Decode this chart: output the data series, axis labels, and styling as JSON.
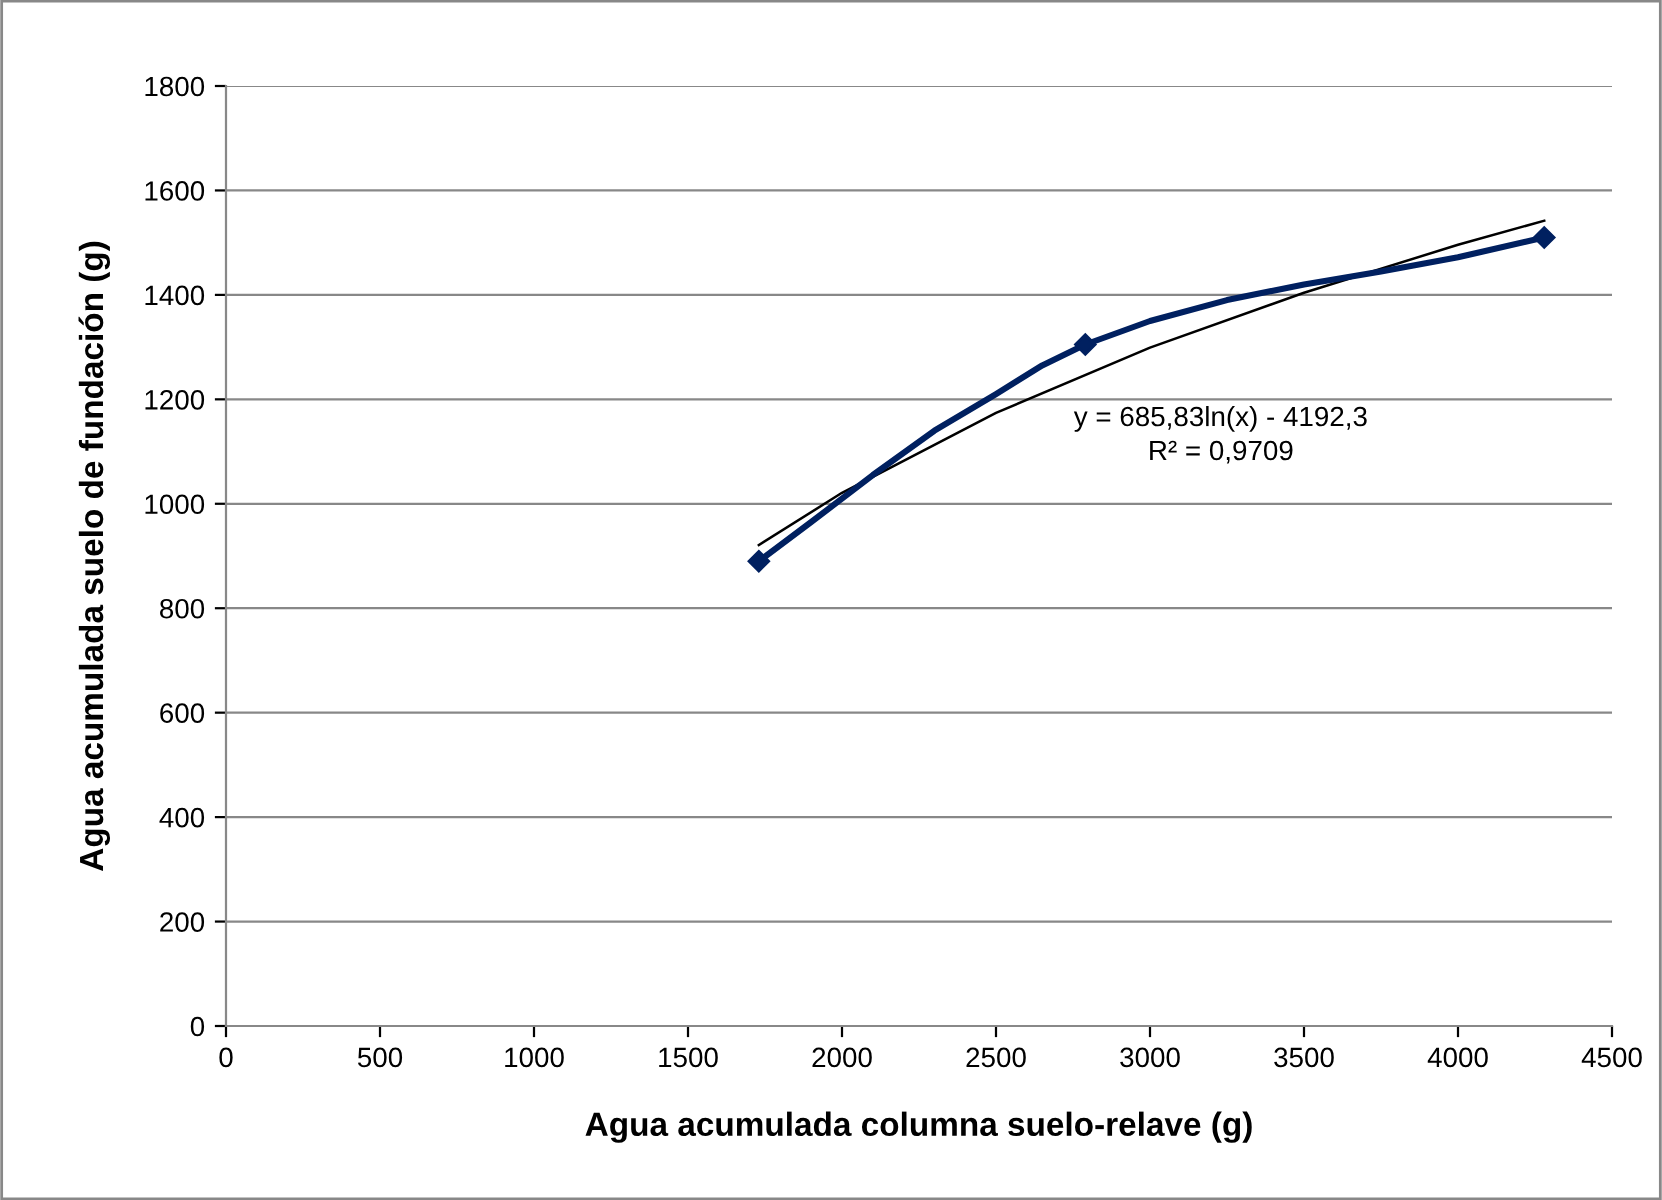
{
  "chart_data": {
    "type": "line",
    "xlabel": "Agua acumulada columna suelo-relave (g)",
    "ylabel": "Agua acumulada suelo de fundación (g)",
    "series": [
      {
        "color": "#002060",
        "marker": "none",
        "x": [
          1730,
          1900,
          2100,
          2300,
          2500,
          2650,
          2790,
          3000,
          3250,
          3500,
          3750,
          4000,
          4280
        ],
        "values": [
          890,
          965,
          1055,
          1140,
          1210,
          1265,
          1305,
          1350,
          1390,
          1420,
          1445,
          1472,
          1510
        ]
      },
      {
        "type": "scatter",
        "color": "#002060",
        "marker": "diamond",
        "x": [
          1730,
          2790,
          4280
        ],
        "values": [
          890,
          1305,
          1510
        ]
      },
      {
        "color": "#000000",
        "marker": "none",
        "x": [
          1730,
          2000,
          2500,
          3000,
          3500,
          4000,
          4280
        ],
        "values": [
          921,
          1021,
          1174,
          1299,
          1404,
          1496,
          1542
        ]
      }
    ],
    "annotations": [
      "y = 685,83ln(x) - 4192,3\nR² = 0,9709"
    ],
    "xlim": [
      0,
      4500
    ],
    "xticks": [
      0,
      500,
      1000,
      1500,
      2000,
      2500,
      3000,
      3500,
      4000,
      4500
    ],
    "ylim": [
      0,
      1800
    ],
    "yticks": [
      0,
      200,
      400,
      600,
      800,
      1000,
      1200,
      1400,
      1600,
      1800
    ],
    "grid": "y",
    "legend": false
  }
}
